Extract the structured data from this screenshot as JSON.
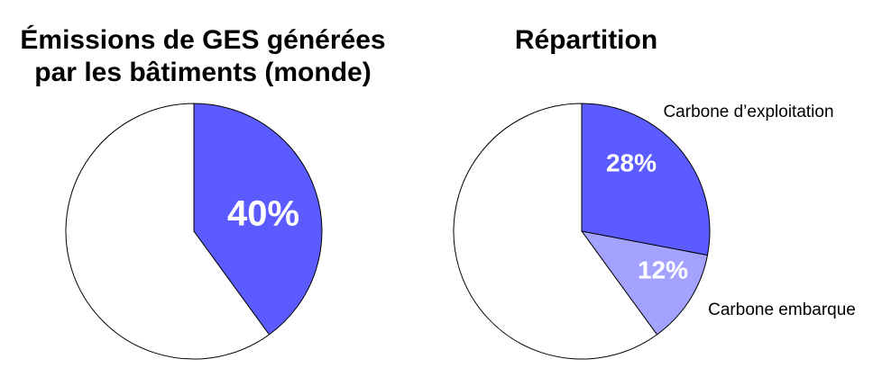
{
  "chart_data": [
    {
      "type": "pie",
      "title": "Émissions de GES générées par les bâtiments (monde)",
      "categories": [
        null,
        null
      ],
      "values": [
        40,
        60
      ],
      "value_labels": [
        "40%",
        null
      ],
      "colors": [
        "#5b5bff",
        "#ffffff"
      ]
    },
    {
      "type": "pie",
      "title": "Répartition",
      "categories": [
        "Carbone d’exploitation",
        "Carbone embarque",
        null
      ],
      "values": [
        28,
        12,
        60
      ],
      "value_labels": [
        "28%",
        "12%",
        null
      ],
      "colors": [
        "#5b5bff",
        "#a3a3ff",
        "#ffffff"
      ]
    }
  ]
}
